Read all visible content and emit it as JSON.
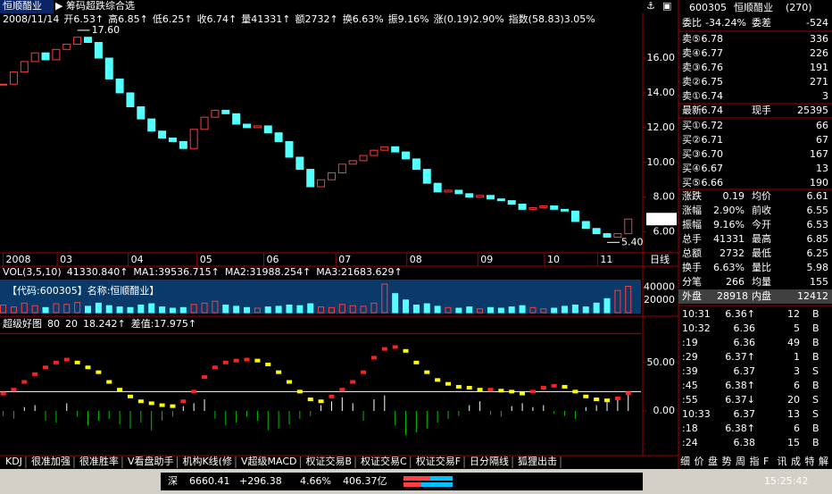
{
  "header": {
    "stock_name": "恒顺醋业",
    "formula": "筹码超跌综合选",
    "items": [
      {
        "text": "2008/11/14",
        "color": "#ffffff"
      },
      {
        "text": "开6.53↑",
        "color": "#ff5050"
      },
      {
        "text": "高6.85↑",
        "color": "#ff5050"
      },
      {
        "text": "低6.25↑",
        "color": "#ff5050"
      },
      {
        "text": "收6.74↑",
        "color": "#ff5050"
      },
      {
        "text": "量41331↑",
        "color": "#ffffff"
      },
      {
        "text": "额2732↑",
        "color": "#ffffff"
      },
      {
        "text": "换6.63%",
        "color": "#ffffff"
      },
      {
        "text": "振9.16%",
        "color": "#ffffff"
      },
      {
        "text": "涨(0.19)2.90%",
        "color": "#ff5050"
      },
      {
        "text": "指数(58.83)3.05%",
        "color": "#ff5050"
      }
    ]
  },
  "chart_data": [
    {
      "type": "candlestick",
      "values": [
        14.5,
        15.2,
        15.8,
        16.3,
        15.9,
        16.5,
        16.8,
        17.2,
        16.9,
        16.0,
        14.8,
        14.0,
        13.2,
        12.5,
        11.8,
        11.4,
        11.2,
        10.8,
        11.9,
        12.6,
        13.0,
        12.8,
        12.2,
        12.0,
        12.1,
        11.7,
        11.2,
        10.3,
        9.6,
        8.6,
        9.0,
        9.4,
        9.9,
        10.1,
        10.4,
        10.7,
        10.9,
        10.6,
        10.2,
        9.6,
        8.8,
        8.3,
        8.4,
        8.2,
        8.0,
        8.1,
        7.9,
        7.8,
        7.6,
        7.3,
        7.4,
        7.5,
        7.3,
        7.2,
        6.6,
        6.2,
        5.9,
        5.7,
        5.9,
        6.74
      ],
      "color_up": "#ff3c3c",
      "color_down": "#54ffff",
      "xlim": [
        -0.3,
        60.2
      ],
      "ylim": [
        4.8,
        17.8
      ],
      "yticks": [
        {
          "value": 6,
          "label": "6.00"
        },
        {
          "value": 8,
          "label": "8.00"
        },
        {
          "value": 10,
          "label": "10.00"
        },
        {
          "value": 12,
          "label": "12.00"
        },
        {
          "value": 14,
          "label": "14.00"
        },
        {
          "value": 16,
          "label": "16.00"
        }
      ],
      "xticks": [
        {
          "value": 0,
          "label": "2008"
        },
        {
          "value": 5.1,
          "label": "03"
        },
        {
          "value": 11.8,
          "label": "04"
        },
        {
          "value": 18.3,
          "label": "05"
        },
        {
          "value": 24.6,
          "label": "06"
        },
        {
          "value": 31.4,
          "label": "07"
        },
        {
          "value": 38.1,
          "label": "08"
        },
        {
          "value": 44.8,
          "label": "09"
        },
        {
          "value": 51.1,
          "label": "10"
        },
        {
          "value": 56.1,
          "label": "11"
        }
      ],
      "period": "日线",
      "annotations": [
        {
          "x": 7,
          "value": 17.6,
          "label": "17.60"
        },
        {
          "x": 57,
          "value": 5.4,
          "label": "5.40"
        }
      ]
    },
    {
      "type": "bar",
      "header": [
        {
          "text": "VOL(3,5,10)",
          "color": "#ffffff"
        },
        {
          "text": "41330.840↑",
          "color": "#ffff00"
        },
        {
          "text": "MA1:39536.715↑",
          "color": "#ff50ff"
        },
        {
          "text": "MA2:31988.254↑",
          "color": "#50ff50"
        },
        {
          "text": "MA3:21683.629↑",
          "color": "#ffffff"
        }
      ],
      "caption": "【代码:600305】名称:恒顺醋业】",
      "values": [
        12000,
        9000,
        15000,
        11000,
        8000,
        14000,
        13000,
        16000,
        10000,
        15000,
        11000,
        9000,
        8000,
        12000,
        14000,
        9000,
        7000,
        8000,
        13000,
        15000,
        18000,
        12000,
        10000,
        8000,
        7000,
        9000,
        10000,
        12000,
        11000,
        14000,
        9000,
        8000,
        13000,
        11000,
        10000,
        15000,
        45000,
        30000,
        20000,
        12000,
        14000,
        10000,
        8000,
        7000,
        9000,
        6000,
        8000,
        7000,
        9000,
        11000,
        8000,
        6000,
        7000,
        10000,
        12000,
        9000,
        15000,
        22000,
        35000,
        41331
      ],
      "xlim": [
        -0.3,
        60.2
      ],
      "ylim": [
        0,
        52000
      ],
      "yticks": [
        20000,
        40000
      ]
    },
    {
      "type": "line",
      "header": [
        {
          "text": "超级好图",
          "color": "#ffffff"
        },
        {
          "text": "18.242↑",
          "color": "#ff5050"
        },
        {
          "text": "差值:17.975↑",
          "color": "#ffff00"
        }
      ],
      "ref_lines": [
        80,
        20
      ],
      "series": [
        {
          "values": [
            18,
            22,
            30,
            38,
            45,
            50,
            53,
            50,
            45,
            40,
            30,
            22,
            15,
            10,
            8,
            6,
            5,
            10,
            20,
            35,
            45,
            50,
            52,
            53,
            52,
            48,
            40,
            30,
            20,
            12,
            10,
            15,
            22,
            30,
            40,
            55,
            64,
            66,
            62,
            50,
            40,
            32,
            28,
            25,
            24,
            22,
            22,
            21,
            20,
            18,
            20,
            24,
            26,
            25,
            20,
            15,
            12,
            11,
            13,
            18.242
          ],
          "color_up": "#ff2020",
          "color_down": "#ffff00"
        },
        {
          "values": [
            -5,
            -8,
            4,
            6,
            -10,
            -12,
            8,
            -6,
            -15,
            -10,
            -8,
            -14,
            -18,
            -12,
            -20,
            -10,
            -6,
            5,
            8,
            12,
            -8,
            -15,
            -12,
            -6,
            -10,
            -20,
            -18,
            -14,
            -8,
            -5,
            6,
            10,
            14,
            8,
            -10,
            12,
            16,
            -15,
            -25,
            -22,
            -18,
            -12,
            -8,
            -5,
            6,
            10,
            -4,
            -6,
            5,
            8,
            4,
            6,
            -3,
            -5,
            -8,
            4,
            6,
            10,
            14,
            17.975
          ],
          "color_up": "#ffffff",
          "color_down": "#00c000"
        }
      ],
      "xlim": [
        -0.3,
        60.2
      ],
      "ylim": [
        -46,
        83
      ],
      "yticks": [
        {
          "value": 0,
          "label": "0.00"
        },
        {
          "value": 50,
          "label": "50.00"
        }
      ]
    }
  ],
  "tabs": [
    "KDJ",
    "很准加强",
    "很准胜率",
    "V看盘助手",
    "机构K线(修",
    "V超级MACD",
    "权证交易B",
    "权证交易C",
    "权证交易F",
    "日分隔线",
    "狐狸出击"
  ],
  "quote": {
    "code": "600305",
    "name": "恒顺醋业",
    "count": "(270)",
    "ratio": [
      "委比",
      "-34.24%",
      "委差",
      "-524"
    ],
    "sell": [
      [
        "卖⑤",
        "6.78",
        "336"
      ],
      [
        "卖④",
        "6.77",
        "226"
      ],
      [
        "卖③",
        "6.76",
        "191"
      ],
      [
        "卖②",
        "6.75",
        "271"
      ],
      [
        "卖①",
        "6.74",
        "3"
      ]
    ],
    "last": [
      "最新",
      "6.74",
      "现手",
      "25395"
    ],
    "buy": [
      [
        "买①",
        "6.72",
        "66"
      ],
      [
        "买②",
        "6.71",
        "67"
      ],
      [
        "买③",
        "6.70",
        "167"
      ],
      [
        "买④",
        "6.67",
        "13"
      ],
      [
        "买⑤",
        "6.66",
        "190"
      ]
    ],
    "stats": [
      [
        "涨跌",
        "0.19",
        "均价",
        "6.61"
      ],
      [
        "涨幅",
        "2.90%",
        "前收",
        "6.55"
      ],
      [
        "振幅",
        "9.16%",
        "今开",
        "6.53"
      ],
      [
        "总手",
        "41331",
        "最高",
        "6.85"
      ],
      [
        "总额",
        "2732",
        "最低",
        "6.25"
      ],
      [
        "换手",
        "6.63%",
        "量比",
        "5.98"
      ],
      [
        "分笔",
        "266",
        "均量",
        "155"
      ]
    ],
    "outer": [
      "外盘",
      "28918",
      "内盘",
      "12412"
    ],
    "trades": [
      [
        "10:31",
        "6.36↑",
        "12",
        "B"
      ],
      [
        "10:32",
        "6.36",
        "5",
        "B"
      ],
      [
        ":19",
        "6.36",
        "49",
        "B"
      ],
      [
        ":29",
        "6.37↑",
        "1",
        "B"
      ],
      [
        ":39",
        "6.37",
        "3",
        "S"
      ],
      [
        ":45",
        "6.38↑",
        "6",
        "B"
      ],
      [
        ":55",
        "6.37↓",
        "20",
        "S"
      ],
      [
        "10:33",
        "6.37",
        "13",
        "S"
      ],
      [
        ":18",
        "6.38↑",
        "6",
        "B"
      ],
      [
        ":24",
        "6.38",
        "15",
        "B"
      ]
    ],
    "panel_tabs": [
      "细",
      "价",
      "盘",
      "势",
      "周",
      "指",
      "F",
      "讯",
      "成",
      "特",
      "解"
    ]
  },
  "status": {
    "market": "深",
    "index": "6660.41",
    "change": "+296.38",
    "pct": "4.66%",
    "amount": "406.37亿",
    "time": "15:25:42"
  }
}
